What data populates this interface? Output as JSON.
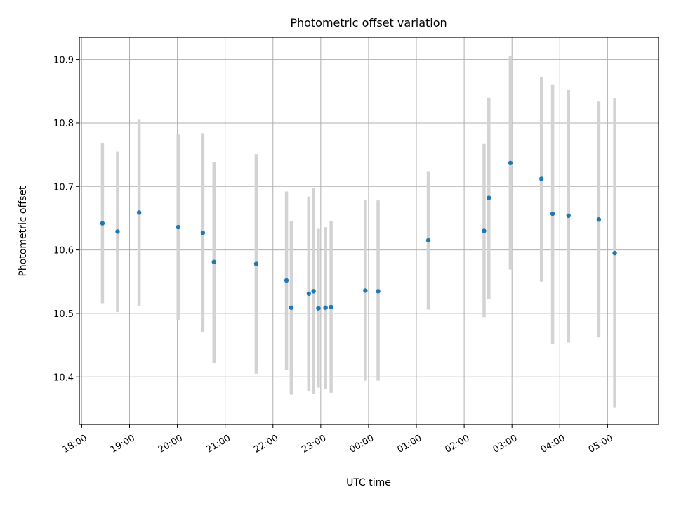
{
  "chart_data": {
    "type": "scatter",
    "title": "Photometric offset variation",
    "xlabel": "UTC time",
    "ylabel": "Photometric offset",
    "x_unit": "UTC time (HH:MM), spanning midnight",
    "xlim": [
      "17:57",
      "06:04"
    ],
    "ylim": [
      10.325,
      10.935
    ],
    "y_ticks": [
      10.4,
      10.5,
      10.6,
      10.7,
      10.8,
      10.9
    ],
    "y_tick_labels": [
      "10.4",
      "10.5",
      "10.6",
      "10.7",
      "10.8",
      "10.9"
    ],
    "x_tick_labels": [
      "18:00",
      "19:00",
      "20:00",
      "21:00",
      "22:00",
      "23:00",
      "00:00",
      "01:00",
      "02:00",
      "03:00",
      "04:00",
      "05:00"
    ],
    "grid": true,
    "marker_color": "#1f77b4",
    "errorbar_color": "#d3d3d3",
    "points": [
      {
        "t": "18:26",
        "y": 10.642,
        "lo": 10.516,
        "hi": 10.768
      },
      {
        "t": "18:45",
        "y": 10.629,
        "lo": 10.502,
        "hi": 10.755
      },
      {
        "t": "19:12",
        "y": 10.659,
        "lo": 10.511,
        "hi": 10.805
      },
      {
        "t": "20:01",
        "y": 10.636,
        "lo": 10.489,
        "hi": 10.782
      },
      {
        "t": "20:32",
        "y": 10.627,
        "lo": 10.47,
        "hi": 10.784
      },
      {
        "t": "20:46",
        "y": 10.581,
        "lo": 10.422,
        "hi": 10.739
      },
      {
        "t": "21:39",
        "y": 10.578,
        "lo": 10.405,
        "hi": 10.751
      },
      {
        "t": "22:17",
        "y": 10.552,
        "lo": 10.411,
        "hi": 10.692
      },
      {
        "t": "22:23",
        "y": 10.509,
        "lo": 10.372,
        "hi": 10.645
      },
      {
        "t": "22:45",
        "y": 10.531,
        "lo": 10.377,
        "hi": 10.684
      },
      {
        "t": "22:51",
        "y": 10.535,
        "lo": 10.373,
        "hi": 10.697
      },
      {
        "t": "22:57",
        "y": 10.508,
        "lo": 10.383,
        "hi": 10.633
      },
      {
        "t": "23:06",
        "y": 10.509,
        "lo": 10.381,
        "hi": 10.636
      },
      {
        "t": "23:13",
        "y": 10.51,
        "lo": 10.375,
        "hi": 10.646
      },
      {
        "t": "23:56",
        "y": 10.536,
        "lo": 10.394,
        "hi": 10.679
      },
      {
        "t": "00:12",
        "y": 10.535,
        "lo": 10.394,
        "hi": 10.678
      },
      {
        "t": "01:15",
        "y": 10.615,
        "lo": 10.506,
        "hi": 10.723
      },
      {
        "t": "02:25",
        "y": 10.63,
        "lo": 10.494,
        "hi": 10.767
      },
      {
        "t": "02:31",
        "y": 10.682,
        "lo": 10.523,
        "hi": 10.84
      },
      {
        "t": "02:58",
        "y": 10.737,
        "lo": 10.569,
        "hi": 10.906
      },
      {
        "t": "03:37",
        "y": 10.712,
        "lo": 10.55,
        "hi": 10.873
      },
      {
        "t": "03:51",
        "y": 10.657,
        "lo": 10.452,
        "hi": 10.86
      },
      {
        "t": "04:11",
        "y": 10.654,
        "lo": 10.454,
        "hi": 10.852
      },
      {
        "t": "04:49",
        "y": 10.648,
        "lo": 10.462,
        "hi": 10.834
      },
      {
        "t": "05:09",
        "y": 10.595,
        "lo": 10.352,
        "hi": 10.839
      }
    ]
  }
}
